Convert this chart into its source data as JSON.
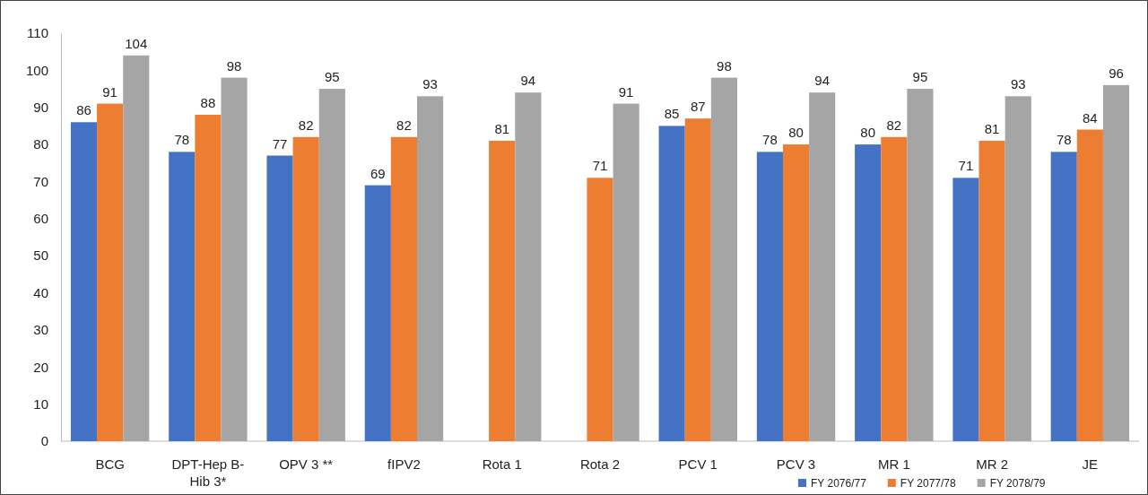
{
  "chart_data": {
    "type": "bar",
    "categories": [
      "BCG",
      "DPT-Hep B-Hib 3*",
      "OPV 3 **",
      "fIPV2",
      "Rota 1",
      "Rota 2",
      "PCV 1",
      "PCV 3",
      "MR 1",
      "MR 2",
      "JE"
    ],
    "series": [
      {
        "name": "FY 2076/77",
        "color": "#4472c4",
        "values": [
          86,
          78,
          77,
          69,
          null,
          null,
          85,
          78,
          80,
          71,
          78
        ]
      },
      {
        "name": "FY 2077/78",
        "color": "#ed7d31",
        "values": [
          91,
          88,
          82,
          82,
          81,
          71,
          87,
          80,
          82,
          81,
          84
        ]
      },
      {
        "name": "FY 2078/79",
        "color": "#a5a5a5",
        "values": [
          104,
          98,
          95,
          93,
          94,
          91,
          98,
          94,
          95,
          93,
          96
        ]
      }
    ],
    "ylim": [
      0,
      110
    ],
    "yticks": [
      0,
      10,
      20,
      30,
      40,
      50,
      60,
      70,
      80,
      90,
      100,
      110
    ],
    "grid": false,
    "data_labels": true,
    "legend": "bottom right"
  }
}
